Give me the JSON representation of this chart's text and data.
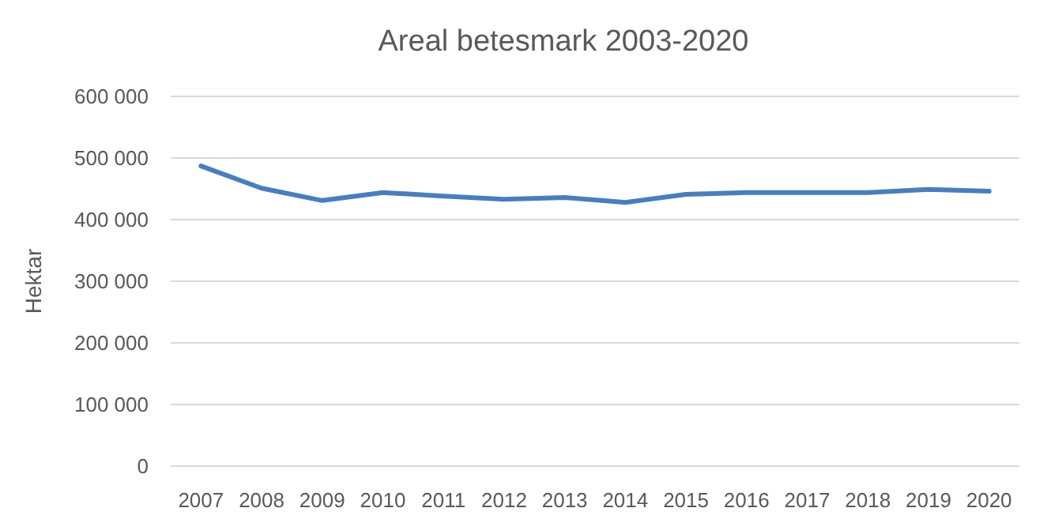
{
  "chart_data": {
    "type": "line",
    "title": "Areal betesmark 2003-2020",
    "ylabel": "Hektar",
    "categories": [
      "2007",
      "2008",
      "2009",
      "2010",
      "2011",
      "2012",
      "2013",
      "2014",
      "2015",
      "2016",
      "2017",
      "2018",
      "2019",
      "2020"
    ],
    "series": [
      {
        "color": "#4a7ebb",
        "values": [
          487000,
          451000,
          431000,
          444000,
          438000,
          433000,
          436000,
          428000,
          441000,
          444000,
          444000,
          444000,
          449000,
          446000
        ]
      }
    ],
    "ylim": [
      0,
      600000
    ],
    "yticks": [
      {
        "value": 0,
        "label": "0"
      },
      {
        "value": 100000,
        "label": "100 000"
      },
      {
        "value": 200000,
        "label": "200 000"
      },
      {
        "value": 300000,
        "label": "300 000"
      },
      {
        "value": 400000,
        "label": "400 000"
      },
      {
        "value": 500000,
        "label": "500 000"
      },
      {
        "value": 600000,
        "label": "600 000"
      }
    ],
    "grid": "y",
    "marker": "none",
    "line_style": "solid"
  }
}
